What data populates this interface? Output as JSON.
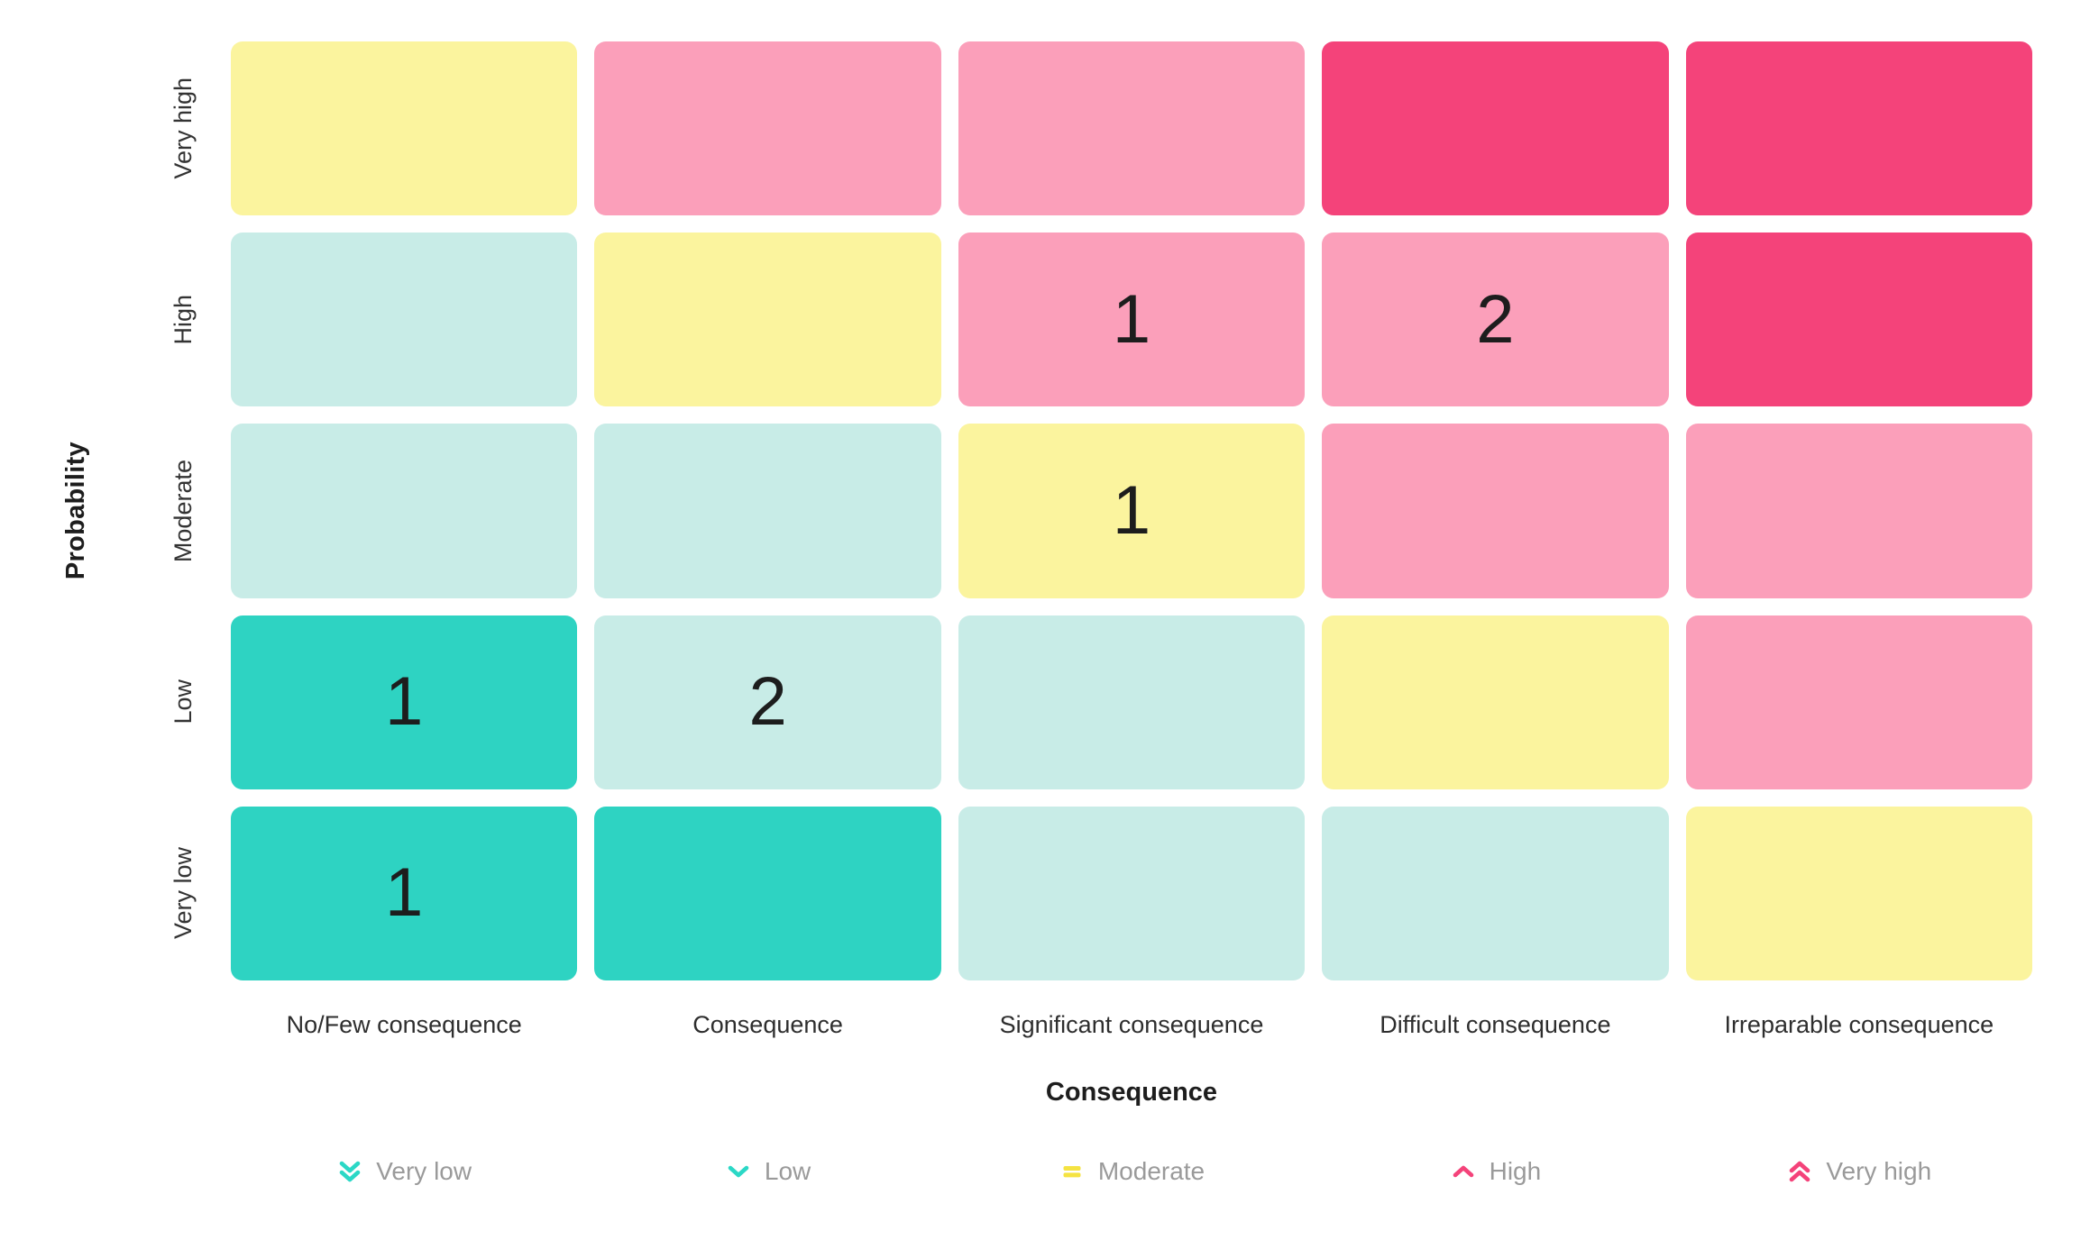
{
  "matrix": {
    "y_axis_label": "Probability",
    "x_axis_label": "Consequence",
    "row_labels": [
      "Very high",
      "High",
      "Moderate",
      "Low",
      "Very low"
    ],
    "column_labels": [
      "No/Few consequence",
      "Consequence",
      "Significant consequence",
      "Difficult consequence",
      "Irreparable consequence"
    ],
    "cells": [
      [
        {
          "level": "moderate"
        },
        {
          "level": "high"
        },
        {
          "level": "high"
        },
        {
          "level": "very_high"
        },
        {
          "level": "very_high"
        }
      ],
      [
        {
          "level": "low"
        },
        {
          "level": "moderate"
        },
        {
          "level": "high",
          "count": "1"
        },
        {
          "level": "high",
          "count": "2"
        },
        {
          "level": "very_high"
        }
      ],
      [
        {
          "level": "low"
        },
        {
          "level": "low"
        },
        {
          "level": "moderate",
          "count": "1"
        },
        {
          "level": "high"
        },
        {
          "level": "high"
        }
      ],
      [
        {
          "level": "very_low",
          "count": "1"
        },
        {
          "level": "low",
          "count": "2"
        },
        {
          "level": "low"
        },
        {
          "level": "moderate"
        },
        {
          "level": "high"
        }
      ],
      [
        {
          "level": "very_low",
          "count": "1"
        },
        {
          "level": "very_low"
        },
        {
          "level": "low"
        },
        {
          "level": "low"
        },
        {
          "level": "moderate"
        }
      ]
    ]
  },
  "colors": {
    "very_low": "#2ed3c2",
    "low": "#c8ece7",
    "moderate": "#fbf49e",
    "high": "#fb9fba",
    "very_high": "#f4437a",
    "legend_teal": "#2bd8c6",
    "legend_yellow": "#f5e342",
    "legend_pink": "#f4437a",
    "cell_number_text": "#1d1d1d",
    "axis_title_text": "#1d1d1d",
    "tick_label_text": "#333333",
    "legend_label_text": "#9a9a9a"
  },
  "legend": {
    "items": [
      {
        "label": "Very low",
        "icon": "chevrons-down-icon",
        "color": "#2bd8c6"
      },
      {
        "label": "Low",
        "icon": "chevron-down-icon",
        "color": "#2bd8c6"
      },
      {
        "label": "Moderate",
        "icon": "equals-icon",
        "color": "#f5e342"
      },
      {
        "label": "High",
        "icon": "chevron-up-icon",
        "color": "#f4437a"
      },
      {
        "label": "Very high",
        "icon": "chevrons-up-icon",
        "color": "#f4437a"
      }
    ]
  },
  "chart_data": {
    "type": "heatmap",
    "title": "",
    "xlabel": "Consequence",
    "ylabel": "Probability",
    "x_categories": [
      "No/Few consequence",
      "Consequence",
      "Significant consequence",
      "Difficult consequence",
      "Irreparable consequence"
    ],
    "y_categories_top_to_bottom": [
      "Very high",
      "High",
      "Moderate",
      "Low",
      "Very low"
    ],
    "cell_risk_levels": [
      [
        "Moderate",
        "High",
        "High",
        "Very high",
        "Very high"
      ],
      [
        "Low",
        "Moderate",
        "High",
        "High",
        "Very high"
      ],
      [
        "Low",
        "Low",
        "Moderate",
        "High",
        "High"
      ],
      [
        "Very low",
        "Low",
        "Low",
        "Moderate",
        "High"
      ],
      [
        "Very low",
        "Very low",
        "Low",
        "Low",
        "Moderate"
      ]
    ],
    "cell_counts": [
      [
        null,
        null,
        null,
        null,
        null
      ],
      [
        null,
        null,
        1,
        2,
        null
      ],
      [
        null,
        null,
        1,
        null,
        null
      ],
      [
        1,
        2,
        null,
        null,
        null
      ],
      [
        1,
        null,
        null,
        null,
        null
      ]
    ],
    "legend_entries": [
      "Very low",
      "Low",
      "Moderate",
      "High",
      "Very high"
    ],
    "legend_position": "bottom",
    "grid": false
  }
}
